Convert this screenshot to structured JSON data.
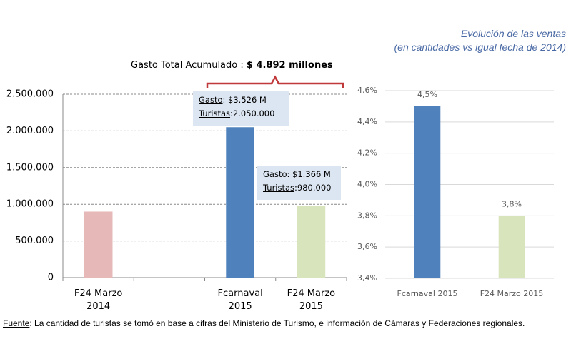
{
  "chart_data": [
    {
      "type": "bar",
      "categories": [
        "F24 Marzo 2014",
        null,
        "Fcarnaval 2015",
        "F24 Marzo 2015"
      ],
      "values": [
        900000,
        null,
        2050000,
        980000
      ],
      "colors": [
        "#e6b8b7",
        "#4f81bd",
        "#4f81bd",
        "#d7e4bc"
      ],
      "ylim": [
        0,
        2500000
      ],
      "yticks": [
        {
          "value": 0,
          "label": "0"
        },
        {
          "value": 500000,
          "label": "500.000"
        },
        {
          "value": 1000000,
          "label": "1.000.000"
        },
        {
          "value": 1500000,
          "label": "1.500.000"
        },
        {
          "value": 2000000,
          "label": "2.000.000"
        },
        {
          "value": 2500000,
          "label": "2.500.000"
        }
      ],
      "grid": true,
      "total_annotation": {
        "label": "Gasto Total Acumulado : ",
        "value": "$ 4.892 millones"
      },
      "callouts": [
        {
          "lines": [
            [
              "Gasto",
              ": $3.526 M"
            ],
            [
              "Turistas",
              ":2.050.000"
            ]
          ]
        },
        {
          "lines": [
            [
              "Gasto",
              ": $1.366 M"
            ],
            [
              "Turistas",
              ":980.000"
            ]
          ]
        }
      ]
    },
    {
      "type": "bar",
      "title": "Evolución de las ventas",
      "subtitle": "(en cantidades vs igual fecha de 2014)",
      "categories": [
        "Fcarnaval 2015",
        "F24 Marzo 2015"
      ],
      "values": [
        4.5,
        3.8
      ],
      "value_labels": [
        "4,5%",
        "3,8%"
      ],
      "colors": [
        "#4f81bd",
        "#d7e4bc"
      ],
      "ylim": [
        3.4,
        4.6
      ],
      "yticks": [
        {
          "value": 3.4,
          "label": "3,4%"
        },
        {
          "value": 3.6,
          "label": "3,6%"
        },
        {
          "value": 3.8,
          "label": "3,8%"
        },
        {
          "value": 4.0,
          "label": "4,0%"
        },
        {
          "value": 4.2,
          "label": "4,2%"
        },
        {
          "value": 4.4,
          "label": "4,4%"
        },
        {
          "value": 4.6,
          "label": "4,6%"
        }
      ],
      "grid": true
    }
  ],
  "footer": {
    "label": "Fuente",
    "text": ": La cantidad de turistas se tomó en base a cifras del Ministerio de Turismo, e información de Cámaras y Federaciones regionales."
  }
}
